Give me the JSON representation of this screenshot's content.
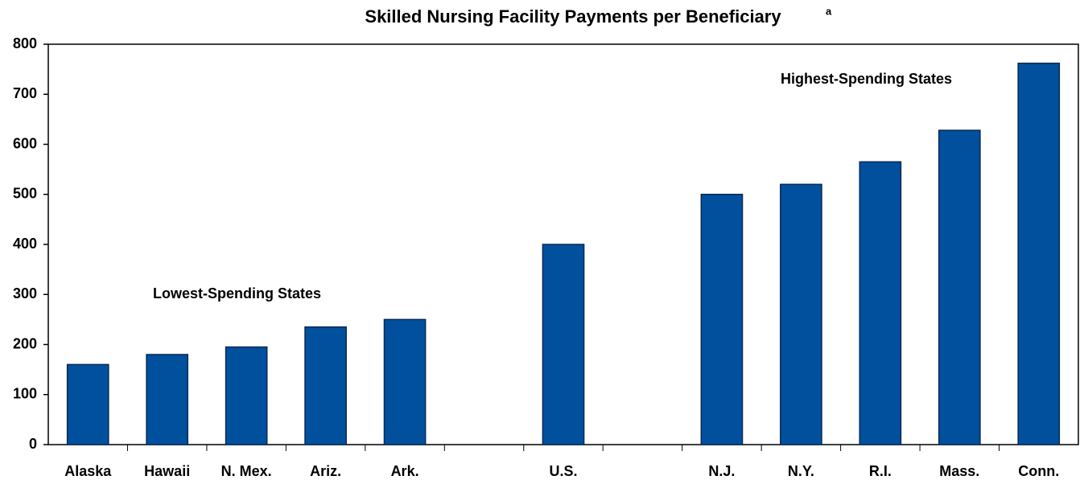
{
  "chart_data": {
    "type": "bar",
    "title": "Skilled Nursing Facility Payments per Beneficiary",
    "title_note": "a",
    "annotations": [
      "Lowest-Spending States",
      "Highest-Spending States"
    ],
    "categories": [
      "Alaska",
      "Hawaii",
      "N. Mex.",
      "Ariz.",
      "Ark.",
      null,
      "U.S.",
      null,
      "N.J.",
      "N.Y.",
      "R.I.",
      "Mass.",
      "Conn."
    ],
    "values": [
      160,
      180,
      195,
      235,
      250,
      null,
      400,
      null,
      500,
      520,
      565,
      628,
      762
    ],
    "color": "#00509e",
    "ylim": [
      0,
      800
    ],
    "yticks": [
      0,
      100,
      200,
      300,
      400,
      500,
      600,
      700,
      800
    ],
    "grid": false
  }
}
